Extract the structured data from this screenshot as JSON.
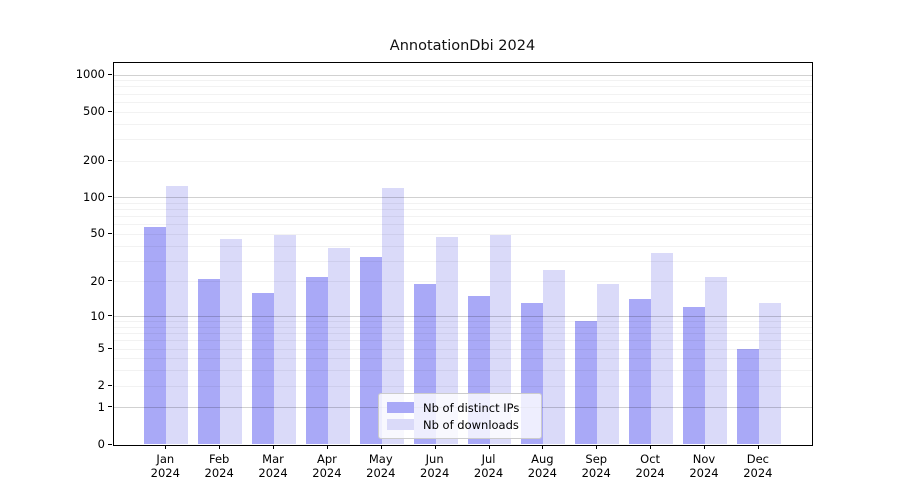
{
  "figure_title": "AnnotationDbi 2024",
  "chart_data": {
    "type": "bar",
    "title": "AnnotationDbi 2024",
    "categories": [
      "Jan 2024",
      "Feb 2024",
      "Mar 2024",
      "Apr 2024",
      "May 2024",
      "Jun 2024",
      "Jul 2024",
      "Aug 2024",
      "Sep 2024",
      "Oct 2024",
      "Nov 2024",
      "Dec 2024"
    ],
    "month_labels": [
      "Jan",
      "Feb",
      "Mar",
      "Apr",
      "May",
      "Jun",
      "Jul",
      "Aug",
      "Sep",
      "Oct",
      "Nov",
      "Dec"
    ],
    "year_label": "2024",
    "series": [
      {
        "name": "Nb of distinct IPs",
        "color": "#a9a9f7",
        "values": [
          57,
          21,
          16,
          22,
          32,
          19,
          15,
          13,
          9,
          14,
          12,
          5
        ]
      },
      {
        "name": "Nb of downloads",
        "color": "#dadaf9",
        "values": [
          124,
          45,
          49,
          38,
          120,
          47,
          49,
          25,
          19,
          35,
          22,
          13
        ]
      }
    ],
    "yscale": "log10(1+y)",
    "ylim": [
      0,
      1250
    ],
    "yticks": [
      0,
      1,
      2,
      5,
      10,
      20,
      50,
      100,
      200,
      500,
      1000
    ],
    "ytick_labels": [
      "0",
      "1",
      "2",
      "5",
      "10",
      "20",
      "50",
      "100",
      "200",
      "500",
      "1000"
    ],
    "grid": {
      "orientation": "horizontal",
      "major_at": [
        1,
        10,
        100,
        1000
      ],
      "minor_decades_steps": [
        2,
        3,
        4,
        5,
        6,
        7,
        8,
        9
      ]
    },
    "legend": {
      "position": "lower-center",
      "entries": [
        "Nb of distinct IPs",
        "Nb of downloads"
      ]
    },
    "colors": {
      "distinct_ips": "#a9a9f7",
      "downloads": "#dadaf9",
      "major_grid": "#cacaca",
      "minor_grid": "#ededed",
      "axis": "#000000"
    }
  }
}
